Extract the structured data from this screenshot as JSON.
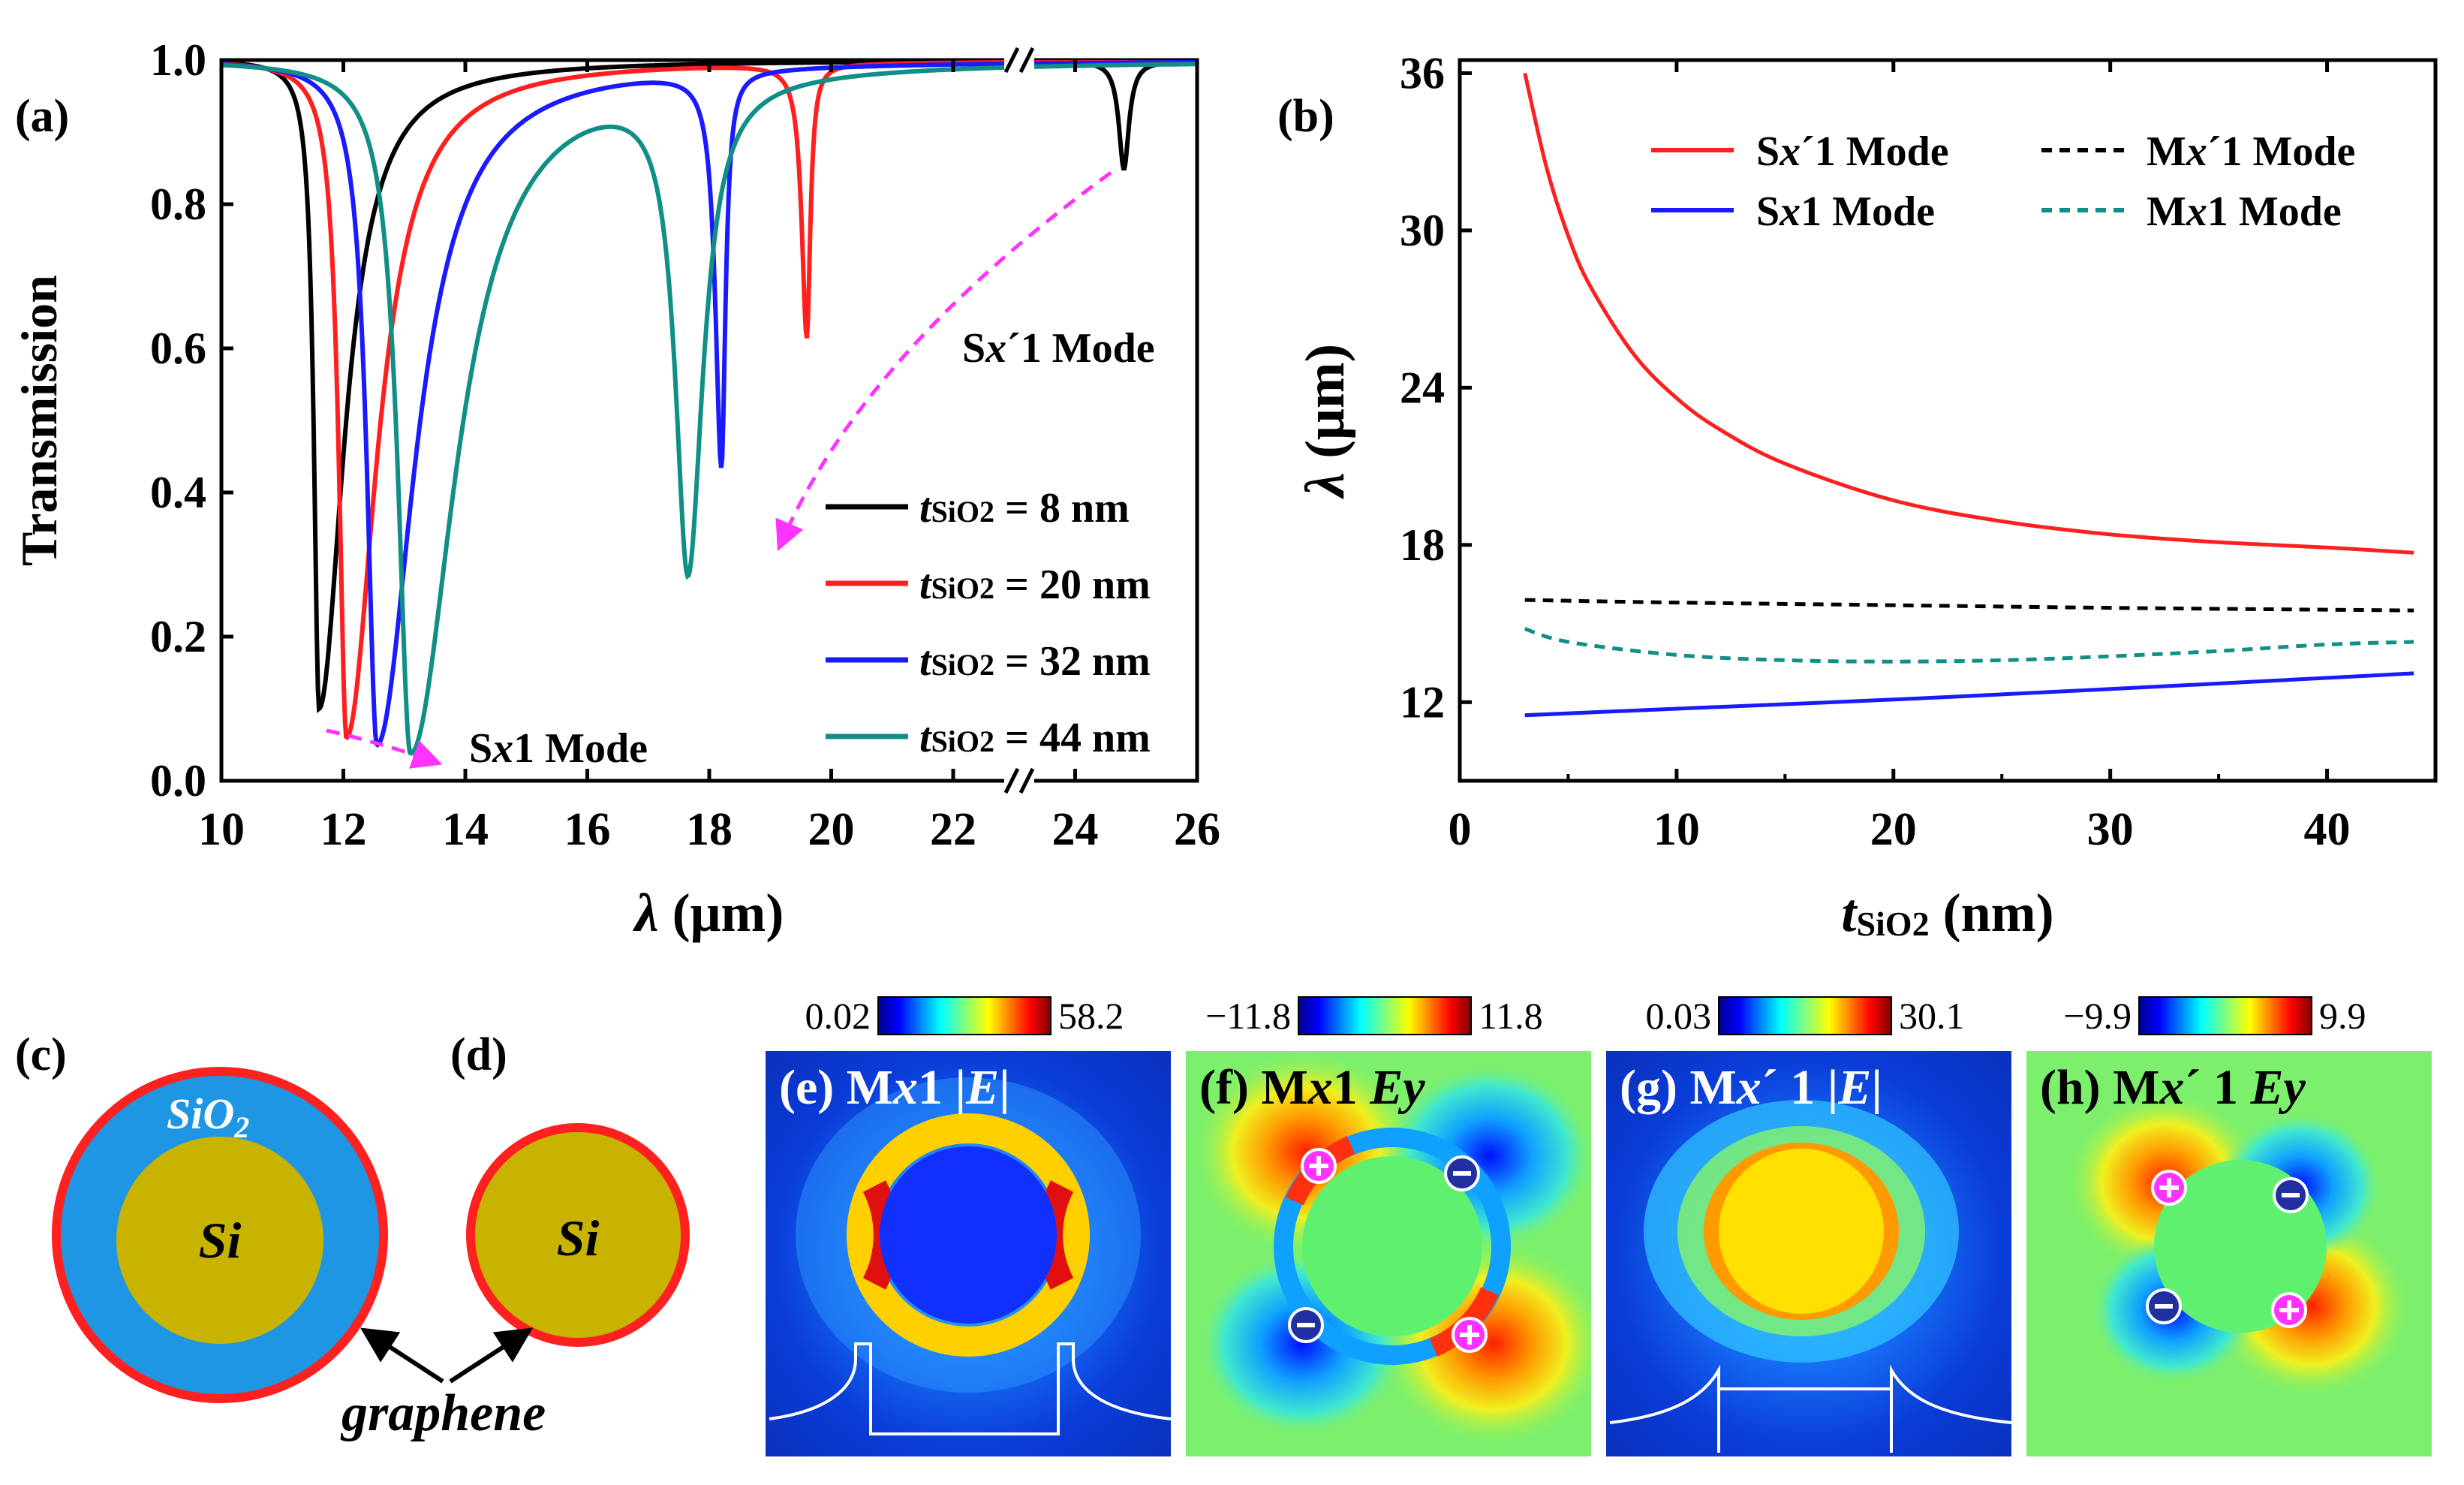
{
  "panel_labels": {
    "a": "(a)",
    "b": "(b)",
    "c": "(c)",
    "d": "(d)"
  },
  "colors": {
    "c1": "#000000",
    "c2": "#ff1f1f",
    "c3": "#1a1aff",
    "c4": "#108f86",
    "arrow": "#ff33ff",
    "sio2": "#1e96e4",
    "si": "#c8b400",
    "graphene": "#ff2020"
  },
  "chart_data": [
    {
      "id": "a",
      "type": "line",
      "title": "",
      "xlabel_symbol": "λ",
      "xlabel_unit": " (μm)",
      "ylabel": "Transmission",
      "xlim": [
        10,
        26
      ],
      "ylim": [
        0.0,
        1.0
      ],
      "axis_break": "between 22 and 23",
      "x_ticks": [
        "10",
        "12",
        "14",
        "16",
        "18",
        "20",
        "22",
        "24",
        "26"
      ],
      "y_ticks": [
        "0.0",
        "0.2",
        "0.4",
        "0.6",
        "0.8",
        "1.0"
      ],
      "legend_prefix": "t",
      "legend_sub": "SiO2",
      "series": [
        {
          "name": " = 8 nm",
          "dips": [
            {
              "center": 11.6,
              "min": 0.1,
              "hw_left": 0.1,
              "hw_right": 0.5
            },
            {
              "center": 24.8,
              "min": 0.85,
              "hw_left": 0.1,
              "hw_right": 0.1
            }
          ]
        },
        {
          "name": " = 20 nm",
          "dips": [
            {
              "center": 12.05,
              "min": 0.06,
              "hw_left": 0.15,
              "hw_right": 0.6
            },
            {
              "center": 19.6,
              "min": 0.62,
              "hw_left": 0.1,
              "hw_right": 0.07
            }
          ]
        },
        {
          "name": " = 32 nm",
          "dips": [
            {
              "center": 12.55,
              "min": 0.05,
              "hw_left": 0.2,
              "hw_right": 0.75
            },
            {
              "center": 18.2,
              "min": 0.45,
              "hw_left": 0.12,
              "hw_right": 0.08
            }
          ]
        },
        {
          "name": " = 44 nm",
          "dips": [
            {
              "center": 13.1,
              "min": 0.04,
              "hw_left": 0.25,
              "hw_right": 0.9
            },
            {
              "center": 17.65,
              "min": 0.32,
              "hw_left": 0.25,
              "hw_right": 0.3
            }
          ]
        }
      ],
      "annotations": [
        "S",
        "x",
        "´1 Mode",
        "S",
        "x",
        "1 Mode"
      ]
    },
    {
      "id": "b",
      "type": "line",
      "title": "",
      "xlabel_symbol": "t",
      "xlabel_sub": "SiO2",
      "xlabel_unit": " (nm)",
      "ylabel_symbol": "λ",
      "ylabel_unit": " (μm)",
      "xlim": [
        0,
        45
      ],
      "ylim": [
        9,
        36.5
      ],
      "x_ticks": [
        "0",
        "10",
        "20",
        "30",
        "40"
      ],
      "y_ticks": [
        "12",
        "18",
        "24",
        "30",
        "36"
      ],
      "series": [
        {
          "name_parts": [
            "S",
            "x",
            "´1 Mode"
          ],
          "style": "solid",
          "x": [
            3,
            4,
            5,
            6,
            8,
            10,
            12,
            15,
            20,
            25,
            30,
            35,
            40,
            44
          ],
          "y": [
            36,
            32.4,
            29.8,
            27.9,
            25.3,
            23.6,
            22.4,
            21.1,
            19.7,
            18.9,
            18.4,
            18.1,
            17.9,
            17.7
          ]
        },
        {
          "name_parts": [
            "S",
            "x",
            "1 Mode"
          ],
          "style": "solid",
          "x": [
            3,
            10,
            20,
            30,
            44
          ],
          "y": [
            11.5,
            11.75,
            12.1,
            12.5,
            13.1
          ]
        },
        {
          "name_parts": [
            "M",
            "x",
            "´1 Mode"
          ],
          "style": "dashed",
          "x": [
            3,
            10,
            20,
            30,
            44
          ],
          "y": [
            15.9,
            15.8,
            15.7,
            15.6,
            15.5
          ]
        },
        {
          "name_parts": [
            "M",
            "x",
            "1 Mode"
          ],
          "style": "dashed",
          "x": [
            3,
            5,
            10,
            15,
            20,
            25,
            30,
            35,
            40,
            44
          ],
          "y": [
            14.8,
            14.3,
            13.8,
            13.6,
            13.55,
            13.6,
            13.75,
            13.95,
            14.2,
            14.3
          ]
        }
      ]
    }
  ],
  "structures": {
    "sio2_label": "SiO",
    "sio2_sub": "2",
    "si_label": "Si",
    "graphene_label": "graphene"
  },
  "field_maps": [
    {
      "label": "(e) M",
      "mode_sub": "x",
      "mode_tail": "1 |",
      "quantity": "E",
      "tail": "|",
      "cmin": "0.02",
      "cmax": "58.2"
    },
    {
      "label": "(f) M",
      "mode_sub": "x",
      "mode_tail": "1 ",
      "quantity": "Ey",
      "tail": "",
      "cmin": "−11.8",
      "cmax": "11.8"
    },
    {
      "label": "(g) M",
      "mode_sub": "x",
      "mode_tail": "´ 1 |",
      "quantity": "E",
      "tail": "|",
      "cmin": "0.03",
      "cmax": "30.1"
    },
    {
      "label": "(h) M",
      "mode_sub": "x",
      "mode_tail": "´ 1 ",
      "quantity": "Ey",
      "tail": "",
      "cmin": "−9.9",
      "cmax": "9.9"
    }
  ]
}
